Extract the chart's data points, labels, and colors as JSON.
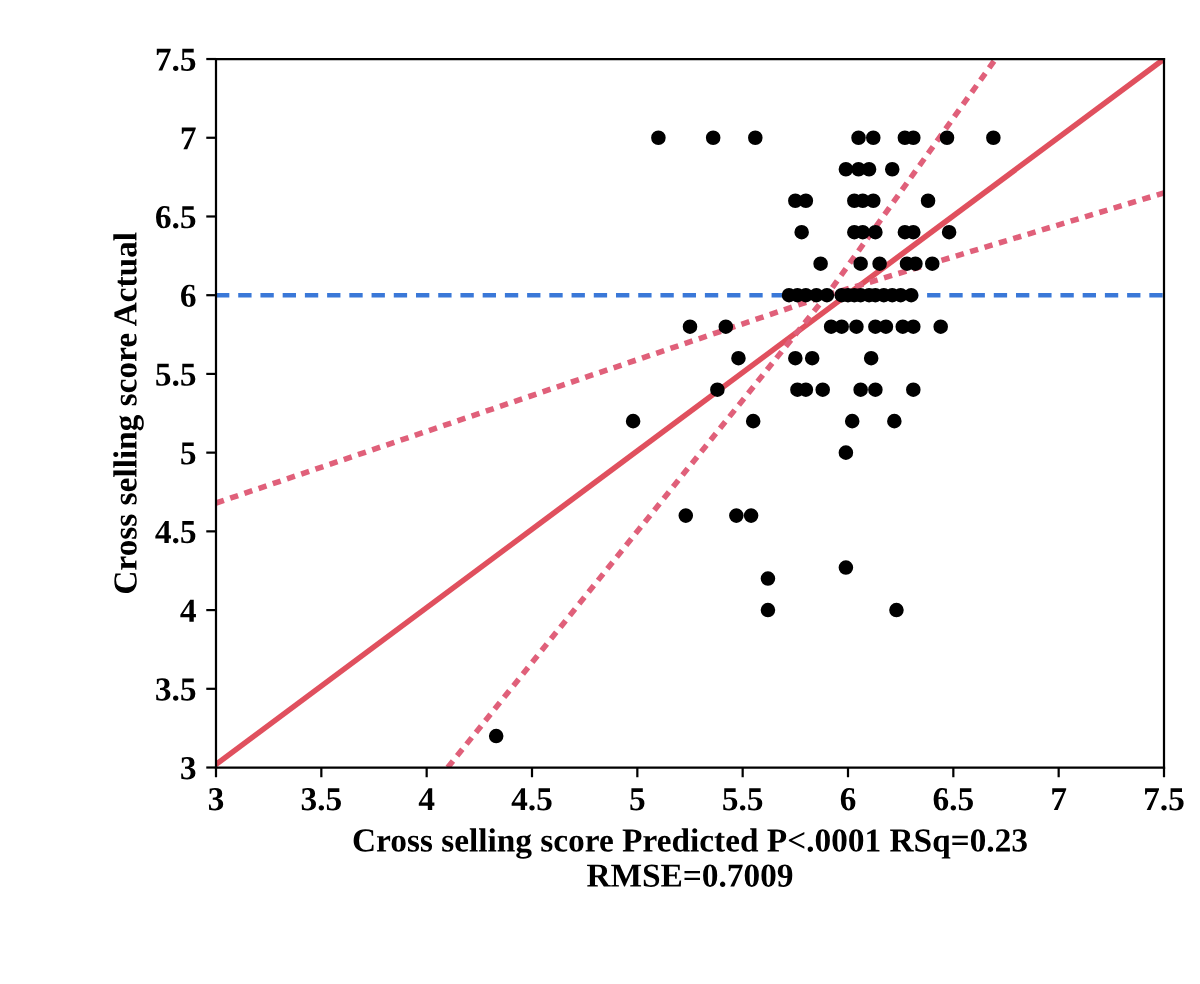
{
  "chart_data": {
    "type": "scatter",
    "xlabel": "Cross selling score Predicted P<.0001 RSq=0.23\nRMSE=0.7009",
    "ylabel": "Cross selling score Actual",
    "xlim": [
      3,
      7.5
    ],
    "ylim": [
      3,
      7.5
    ],
    "xticks": [
      3,
      3.5,
      4,
      4.5,
      5,
      5.5,
      6,
      6.5,
      7,
      7.5
    ],
    "yticks": [
      3,
      3.5,
      4,
      4.5,
      5,
      5.5,
      6,
      6.5,
      7,
      7.5
    ],
    "grid": false,
    "legend": false,
    "series": [
      {
        "color": "#000000",
        "marker": "circle",
        "x": [
          5.1,
          5.36,
          5.56,
          6.05,
          6.12,
          6.27,
          6.31,
          6.47,
          6.69,
          5.99,
          6.05,
          6.1,
          6.21,
          5.75,
          5.8,
          6.03,
          6.07,
          6.12,
          6.38,
          5.78,
          6.03,
          6.07,
          6.13,
          6.27,
          6.31,
          6.48,
          5.87,
          6.06,
          6.15,
          6.28,
          6.32,
          6.4,
          5.72,
          5.76,
          5.8,
          5.85,
          5.9,
          5.97,
          6.0,
          6.03,
          6.06,
          6.1,
          6.13,
          6.17,
          6.21,
          6.25,
          6.3,
          5.25,
          5.42,
          5.92,
          5.97,
          6.04,
          6.13,
          6.18,
          6.26,
          6.31,
          6.44,
          5.48,
          5.75,
          5.83,
          6.11,
          5.38,
          5.76,
          5.8,
          5.88,
          6.06,
          6.13,
          6.31,
          4.98,
          5.55,
          6.02,
          6.22,
          5.99,
          5.23,
          5.47,
          5.54,
          5.99,
          5.62,
          5.62,
          6.23,
          4.33
        ],
        "values": [
          7,
          7,
          7,
          7,
          7,
          7,
          7,
          7,
          7,
          6.8,
          6.8,
          6.8,
          6.8,
          6.6,
          6.6,
          6.6,
          6.6,
          6.6,
          6.6,
          6.4,
          6.4,
          6.4,
          6.4,
          6.4,
          6.4,
          6.4,
          6.2,
          6.2,
          6.2,
          6.2,
          6.2,
          6.2,
          6,
          6,
          6,
          6,
          6,
          6,
          6,
          6,
          6,
          6,
          6,
          6,
          6,
          6,
          6,
          5.8,
          5.8,
          5.8,
          5.8,
          5.8,
          5.8,
          5.8,
          5.8,
          5.8,
          5.8,
          5.6,
          5.6,
          5.6,
          5.6,
          5.4,
          5.4,
          5.4,
          5.4,
          5.4,
          5.4,
          5.4,
          5.2,
          5.2,
          5.2,
          5.2,
          5,
          4.6,
          4.6,
          4.6,
          4.27,
          4.2,
          4,
          4,
          3.2
        ]
      },
      {
        "type": "line",
        "color": "#e0505e",
        "line_style": "solid",
        "marker": "none",
        "x": [
          3,
          7.5
        ],
        "values": [
          3.02,
          7.5
        ]
      },
      {
        "type": "line",
        "color": "#e0607a",
        "line_style": "dotted",
        "marker": "none",
        "x": [
          3,
          5.9,
          7.5
        ],
        "values": [
          4.68,
          6.0,
          6.65
        ]
      },
      {
        "type": "line",
        "color": "#e0607a",
        "line_style": "dotted",
        "marker": "none",
        "x": [
          4.1,
          5.9,
          6.7
        ],
        "values": [
          3,
          6.0,
          7.5
        ]
      }
    ],
    "ref_lines": [
      {
        "axis": "y",
        "value": 6,
        "color": "#3a78d8",
        "line_style": "dashed"
      }
    ]
  }
}
